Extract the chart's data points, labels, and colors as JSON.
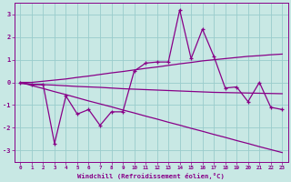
{
  "xlabel": "Windchill (Refroidissement éolien,°C)",
  "bg_color": "#c8e8e4",
  "line_color": "#880088",
  "grid_color": "#99cccc",
  "xlim": [
    -0.5,
    23.5
  ],
  "ylim": [
    -3.5,
    3.5
  ],
  "xticks": [
    0,
    1,
    2,
    3,
    4,
    5,
    6,
    7,
    8,
    9,
    10,
    11,
    12,
    13,
    14,
    15,
    16,
    17,
    18,
    19,
    20,
    21,
    22,
    23
  ],
  "yticks": [
    -3,
    -2,
    -1,
    0,
    1,
    2,
    3
  ],
  "x_data": [
    0,
    1,
    2,
    3,
    4,
    5,
    6,
    7,
    8,
    9,
    10,
    11,
    12,
    13,
    14,
    15,
    16,
    17,
    18,
    19,
    20,
    21,
    22,
    23
  ],
  "y_main": [
    0.0,
    -0.1,
    -0.1,
    -2.7,
    -0.6,
    -1.4,
    -1.2,
    -1.9,
    -1.3,
    -1.3,
    0.5,
    0.85,
    0.9,
    0.9,
    3.2,
    1.05,
    2.35,
    1.15,
    -0.25,
    -0.2,
    -0.85,
    0.0,
    -1.1,
    -1.2
  ],
  "y_upper": [
    0.0,
    0.0,
    0.05,
    0.1,
    0.15,
    0.22,
    0.28,
    0.35,
    0.42,
    0.48,
    0.55,
    0.62,
    0.68,
    0.75,
    0.82,
    0.88,
    0.95,
    1.0,
    1.05,
    1.1,
    1.15,
    1.18,
    1.22,
    1.25
  ],
  "y_midhi": [
    -0.05,
    -0.08,
    -0.1,
    -0.12,
    -0.15,
    -0.18,
    -0.2,
    -0.22,
    -0.25,
    -0.28,
    -0.3,
    -0.32,
    -0.34,
    -0.36,
    -0.38,
    -0.4,
    -0.42,
    -0.44,
    -0.45,
    -0.46,
    -0.47,
    -0.48,
    -0.49,
    -0.5
  ],
  "y_lower": [
    0.0,
    -0.14,
    -0.27,
    -0.41,
    -0.54,
    -0.68,
    -0.82,
    -0.95,
    -1.08,
    -1.22,
    -1.35,
    -1.49,
    -1.62,
    -1.76,
    -1.89,
    -2.03,
    -2.16,
    -2.3,
    -2.43,
    -2.57,
    -2.7,
    -2.84,
    -2.97,
    -3.1
  ],
  "figsize": [
    3.2,
    2.0
  ],
  "dpi": 100
}
